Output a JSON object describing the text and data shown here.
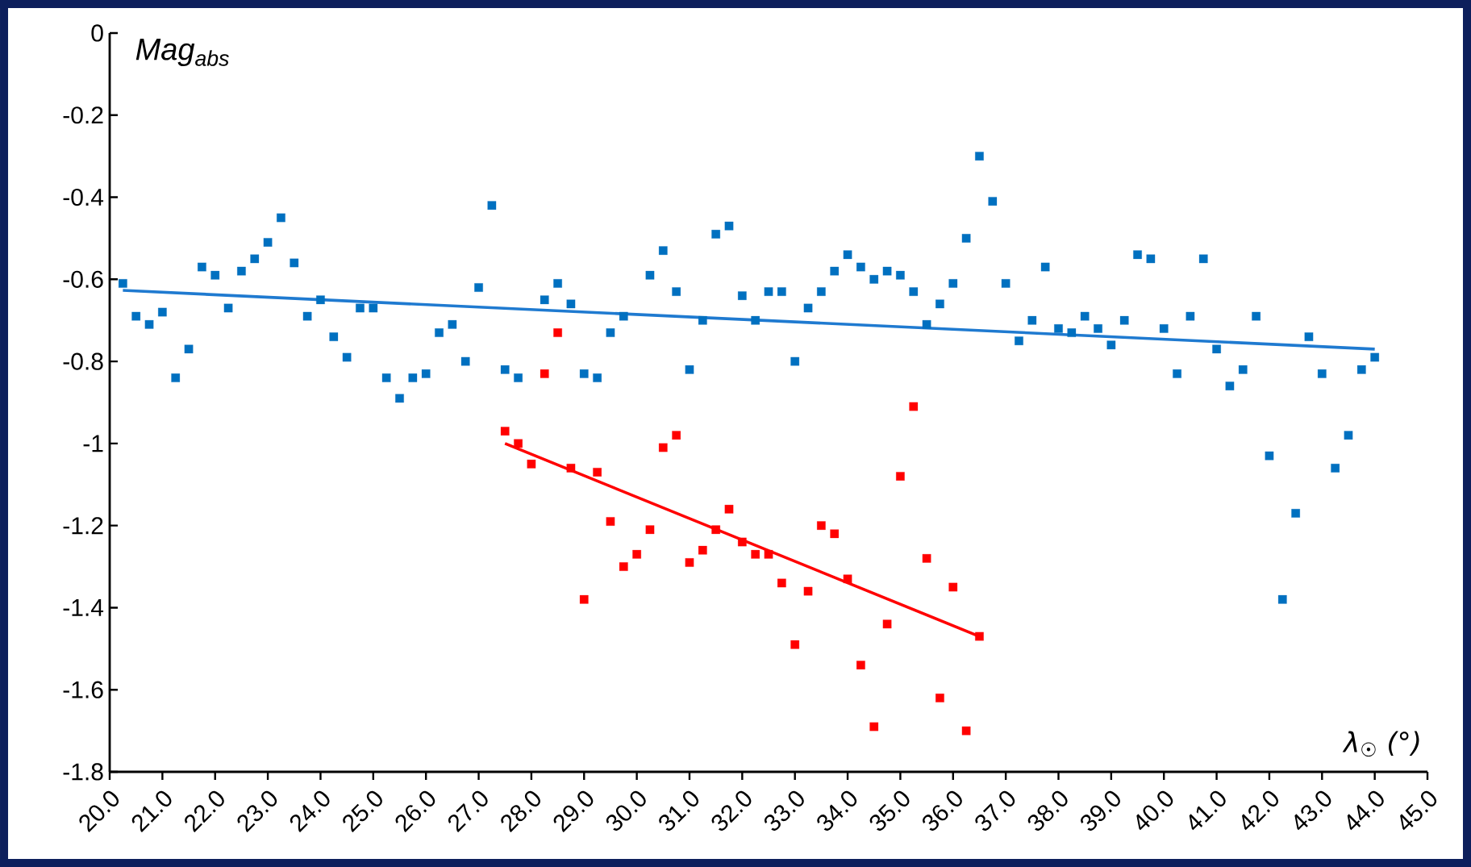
{
  "chart_data": {
    "type": "scatter",
    "xlabel": "λ$_{☉}$ (°)",
    "ylabel": "Mag$_{abs}$",
    "xlim": [
      20,
      45
    ],
    "ylim": [
      -1.8,
      0
    ],
    "xticks": [
      {
        "value": 20,
        "label": "20.0"
      },
      {
        "value": 21,
        "label": "21.0"
      },
      {
        "value": 22,
        "label": "22.0"
      },
      {
        "value": 23,
        "label": "23.0"
      },
      {
        "value": 24,
        "label": "24.0"
      },
      {
        "value": 25,
        "label": "25.0"
      },
      {
        "value": 26,
        "label": "26.0"
      },
      {
        "value": 27,
        "label": "27.0"
      },
      {
        "value": 28,
        "label": "28.0"
      },
      {
        "value": 29,
        "label": "29.0"
      },
      {
        "value": 30,
        "label": "30.0"
      },
      {
        "value": 31,
        "label": "31.0"
      },
      {
        "value": 32,
        "label": "32.0"
      },
      {
        "value": 33,
        "label": "33.0"
      },
      {
        "value": 34,
        "label": "34.0"
      },
      {
        "value": 35,
        "label": "35.0"
      },
      {
        "value": 36,
        "label": "36.0"
      },
      {
        "value": 37,
        "label": "37.0"
      },
      {
        "value": 38,
        "label": "38.0"
      },
      {
        "value": 39,
        "label": "39.0"
      },
      {
        "value": 40,
        "label": "40.0"
      },
      {
        "value": 41,
        "label": "41.0"
      },
      {
        "value": 42,
        "label": "42.0"
      },
      {
        "value": 43,
        "label": "43.0"
      },
      {
        "value": 44,
        "label": "44.0"
      },
      {
        "value": 45,
        "label": "45.0"
      }
    ],
    "yticks": [
      0,
      -0.2,
      -0.4,
      -0.6,
      -0.8,
      -1,
      -1.2,
      -1.4,
      -1.6,
      -1.8
    ],
    "grid": false,
    "series": [
      {
        "marker": "square",
        "color": "#0070c0",
        "x": [
          20.25,
          20.5,
          20.75,
          21.0,
          21.25,
          21.5,
          21.75,
          22.0,
          22.25,
          22.5,
          22.75,
          23.0,
          23.25,
          23.5,
          23.75,
          24.0,
          24.25,
          24.5,
          24.75,
          25.0,
          25.25,
          25.5,
          25.75,
          26.0,
          26.25,
          26.5,
          26.75,
          27.0,
          27.25,
          27.5,
          27.75,
          28.25,
          28.5,
          28.75,
          29.0,
          29.25,
          29.5,
          29.75,
          30.25,
          30.5,
          30.75,
          31.0,
          31.25,
          31.5,
          31.75,
          32.0,
          32.25,
          32.5,
          32.75,
          33.0,
          33.25,
          33.5,
          33.75,
          34.0,
          34.25,
          34.5,
          34.75,
          35.0,
          35.25,
          35.5,
          35.75,
          36.0,
          36.25,
          36.5,
          36.75,
          37.0,
          37.25,
          37.5,
          37.75,
          38.0,
          38.25,
          38.5,
          38.75,
          39.0,
          39.25,
          39.5,
          39.75,
          40.0,
          40.25,
          40.5,
          40.75,
          41.0,
          41.25,
          41.5,
          41.75,
          42.0,
          42.25,
          42.5,
          42.75,
          43.0,
          43.25,
          43.5,
          43.75,
          44.0
        ],
        "values": [
          -0.61,
          -0.69,
          -0.71,
          -0.68,
          -0.84,
          -0.77,
          -0.57,
          -0.59,
          -0.67,
          -0.58,
          -0.55,
          -0.51,
          -0.45,
          -0.56,
          -0.69,
          -0.65,
          -0.74,
          -0.79,
          -0.67,
          -0.67,
          -0.84,
          -0.89,
          -0.84,
          -0.83,
          -0.73,
          -0.71,
          -0.8,
          -0.62,
          -0.42,
          -0.82,
          -0.84,
          -0.65,
          -0.61,
          -0.66,
          -0.83,
          -0.84,
          -0.73,
          -0.69,
          -0.59,
          -0.53,
          -0.63,
          -0.82,
          -0.7,
          -0.49,
          -0.47,
          -0.64,
          -0.7,
          -0.63,
          -0.63,
          -0.8,
          -0.67,
          -0.63,
          -0.58,
          -0.54,
          -0.57,
          -0.6,
          -0.58,
          -0.59,
          -0.63,
          -0.71,
          -0.66,
          -0.61,
          -0.5,
          -0.3,
          -0.41,
          -0.61,
          -0.75,
          -0.7,
          -0.57,
          -0.72,
          -0.73,
          -0.69,
          -0.72,
          -0.76,
          -0.7,
          -0.54,
          -0.55,
          -0.72,
          -0.83,
          -0.69,
          -0.55,
          -0.77,
          -0.86,
          -0.82,
          -0.69,
          -1.03,
          -1.38,
          -1.17,
          -0.74,
          -0.83,
          -1.06,
          -0.98,
          -0.82,
          -0.79
        ]
      },
      {
        "marker": "square",
        "color": "#ff0000",
        "x": [
          27.5,
          27.75,
          28.0,
          28.25,
          28.5,
          28.75,
          29.0,
          29.25,
          29.5,
          29.75,
          30.0,
          30.25,
          30.5,
          30.75,
          31.0,
          31.25,
          31.5,
          31.75,
          32.0,
          32.25,
          32.5,
          32.75,
          33.0,
          33.25,
          33.5,
          33.75,
          34.0,
          34.25,
          34.5,
          34.75,
          35.0,
          35.25,
          35.5,
          35.75,
          36.0,
          36.25,
          36.5
        ],
        "values": [
          -0.97,
          -1.0,
          -1.05,
          -0.83,
          -0.73,
          -1.06,
          -1.38,
          -1.07,
          -1.19,
          -1.3,
          -1.27,
          -1.21,
          -1.01,
          -0.98,
          -1.29,
          -1.26,
          -1.21,
          -1.16,
          -1.24,
          -1.27,
          -1.27,
          -1.34,
          -1.49,
          -1.36,
          -1.2,
          -1.22,
          -1.33,
          -1.54,
          -1.69,
          -1.44,
          -1.08,
          -0.91,
          -1.28,
          -1.62,
          -1.35,
          -1.7,
          -1.47
        ]
      },
      {
        "type": "line",
        "color": "#1f7ad0",
        "x": [
          20.25,
          44.0
        ],
        "values": [
          -0.627,
          -0.77
        ]
      },
      {
        "type": "line",
        "color": "#ff0000",
        "x": [
          27.5,
          36.5
        ],
        "values": [
          -1.0,
          -1.47
        ]
      }
    ]
  }
}
